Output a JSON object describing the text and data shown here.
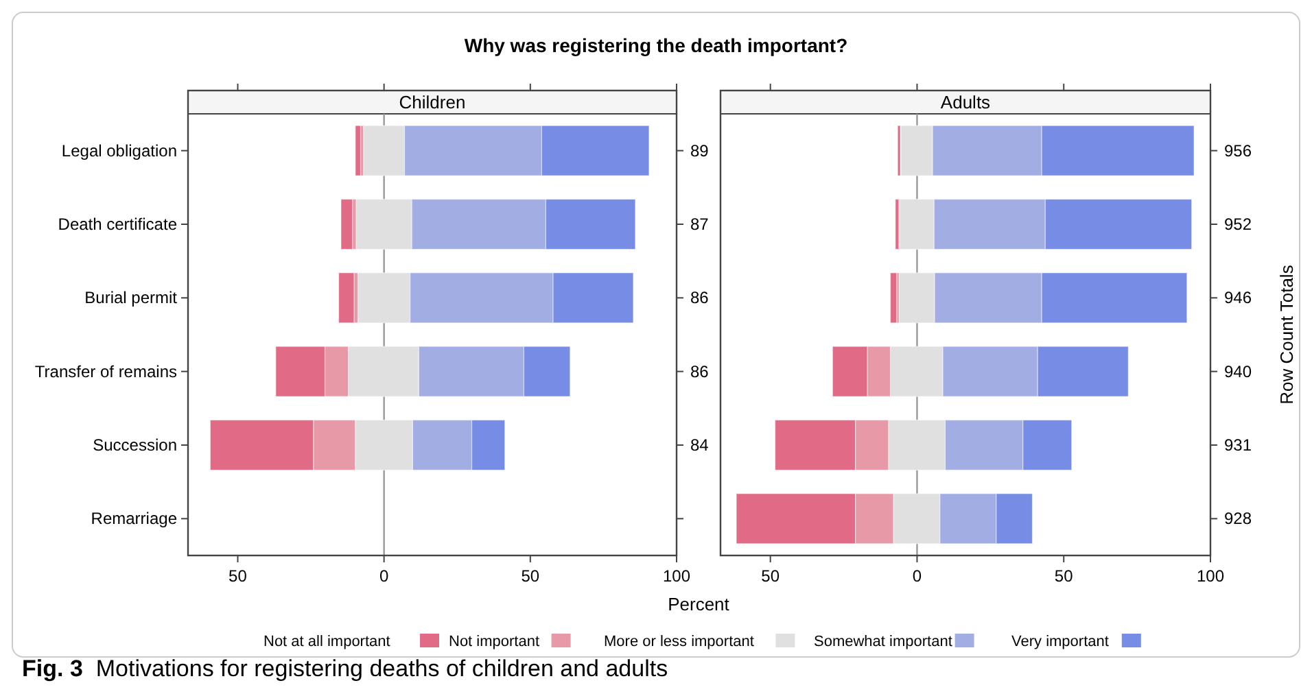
{
  "chart_data": [
    {
      "type": "bar",
      "orientation": "horizontal",
      "title": "Why was registering the death important?",
      "subtitle": "Children",
      "xlabel": "Percent",
      "categories": [
        "Legal obligation",
        "Death certificate",
        "Burial permit",
        "Transfer of remains",
        "Succession",
        "Remarriage"
      ],
      "xlim": [
        -67,
        100
      ],
      "xticks": [
        {
          "value": -50,
          "label": "50"
        },
        0,
        50,
        100
      ],
      "legend": "bottom",
      "annotations": [
        "89",
        "87",
        "86",
        "86",
        "84"
      ],
      "series": [
        {
          "name": "Not at all important",
          "color": "#e16a86",
          "base": [
            -9.8,
            -14.7,
            -15.5,
            -37.0,
            -59.4,
            null
          ],
          "values": [
            1.8,
            3.9,
            5.3,
            16.8,
            35.3,
            null
          ]
        },
        {
          "name": "Not important",
          "color": "#e899a8",
          "base": [
            -8.0,
            -10.8,
            -10.2,
            -20.2,
            -24.1,
            null
          ],
          "values": [
            1.0,
            1.3,
            1.3,
            8.0,
            14.3,
            null
          ]
        },
        {
          "name": "More or less important",
          "color": "#e0e0e0",
          "base": [
            -7.0,
            -9.5,
            -8.9,
            -12.2,
            -9.8,
            null
          ],
          "values": [
            14.0,
            19.0,
            17.8,
            24.1,
            19.6,
            null
          ]
        },
        {
          "name": "Somewhat important",
          "color": "#a2aee3",
          "base": [
            7.0,
            9.5,
            8.9,
            11.9,
            9.8,
            null
          ],
          "values": [
            46.9,
            45.8,
            48.9,
            35.9,
            20.2,
            null
          ]
        },
        {
          "name": "Very important",
          "color": "#778de5",
          "base": [
            53.9,
            55.3,
            57.8,
            47.8,
            30.0,
            null
          ],
          "values": [
            36.7,
            30.6,
            27.4,
            15.8,
            11.3,
            null
          ]
        }
      ]
    },
    {
      "type": "bar",
      "orientation": "horizontal",
      "subtitle": "Adults",
      "y2label": "Row Count Totals",
      "categories": [
        null,
        null,
        null,
        null,
        null,
        null
      ],
      "tick_labels": "x",
      "xlim": [
        -67,
        100
      ],
      "xticks": [
        {
          "value": -50,
          "label": "50"
        },
        0,
        50,
        100
      ],
      "annotations": [
        "956",
        "952",
        "946",
        "940",
        "931",
        "928",
        "Fig. 3  Motivations for registering deaths of children and adults"
      ],
      "series": [
        {
          "color": "#e16a86",
          "base": [
            -6.6,
            -7.4,
            -9.1,
            -28.8,
            -48.4,
            -61.6
          ],
          "values": [
            0.9,
            1.2,
            2.2,
            11.9,
            27.4,
            40.6
          ]
        },
        {
          "color": "#e899a8",
          "base": [
            null,
            -6.2,
            -6.9,
            -16.9,
            -21.0,
            -21.0
          ],
          "values": [
            null,
            0.3,
            0.8,
            7.8,
            11.3,
            13.0
          ]
        },
        {
          "color": "#e0e0e0",
          "base": [
            -5.5,
            -5.9,
            -6.1,
            -9.1,
            -9.7,
            -8.0
          ],
          "values": [
            10.8,
            11.7,
            12.1,
            17.9,
            19.3,
            15.8
          ]
        },
        {
          "color": "#a2aee3",
          "base": [
            5.3,
            5.8,
            6.0,
            8.8,
            9.6,
            7.8
          ],
          "values": [
            37.2,
            37.9,
            36.5,
            32.3,
            26.5,
            19.2
          ]
        },
        {
          "color": "#778de5",
          "base": [
            42.5,
            43.7,
            42.5,
            41.1,
            36.1,
            27.0
          ],
          "values": [
            51.9,
            49.9,
            49.5,
            30.9,
            16.6,
            12.3
          ]
        }
      ]
    }
  ]
}
